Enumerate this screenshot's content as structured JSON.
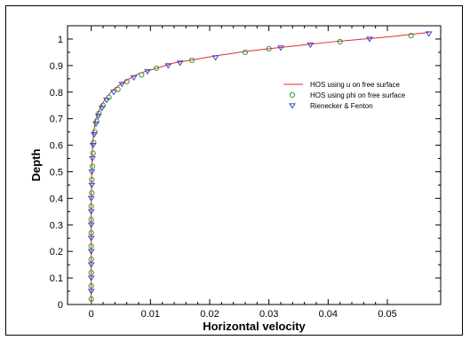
{
  "chart_data": {
    "type": "line",
    "xlabel": "Horizontal velocity",
    "ylabel": "Depth",
    "xlim": [
      -0.004,
      0.059
    ],
    "ylim": [
      0,
      1.05
    ],
    "x_ticks": [
      {
        "value": 0,
        "label": "0"
      },
      {
        "value": 0.01,
        "label": "0.01"
      },
      {
        "value": 0.02,
        "label": "0.02"
      },
      {
        "value": 0.03,
        "label": "0.03"
      },
      {
        "value": 0.04,
        "label": "0.04"
      },
      {
        "value": 0.05,
        "label": "0.05"
      }
    ],
    "y_ticks": [
      {
        "value": 0,
        "label": "0"
      },
      {
        "value": 0.1,
        "label": "0.1"
      },
      {
        "value": 0.2,
        "label": "0.2"
      },
      {
        "value": 0.3,
        "label": "0.3"
      },
      {
        "value": 0.4,
        "label": "0.4"
      },
      {
        "value": 0.5,
        "label": "0.5"
      },
      {
        "value": 0.6,
        "label": "0.6"
      },
      {
        "value": 0.7,
        "label": "0.7"
      },
      {
        "value": 0.8,
        "label": "0.8"
      },
      {
        "value": 0.9,
        "label": "0.9"
      },
      {
        "value": 1,
        "label": "1"
      }
    ],
    "grid": false,
    "legend_position": "top-right",
    "series": [
      {
        "name": "HOS using u on free surface",
        "marker": "line",
        "color": "#e8282d",
        "points": [
          [
            0,
            0
          ],
          [
            0,
            0.2
          ],
          [
            0,
            0.4
          ],
          [
            0.0001,
            0.5
          ],
          [
            0.0002,
            0.58
          ],
          [
            0.0004,
            0.65
          ],
          [
            0.0008,
            0.7
          ],
          [
            0.0015,
            0.74
          ],
          [
            0.0025,
            0.78
          ],
          [
            0.004,
            0.815
          ],
          [
            0.006,
            0.845
          ],
          [
            0.008,
            0.87
          ],
          [
            0.011,
            0.89
          ],
          [
            0.014,
            0.91
          ],
          [
            0.018,
            0.925
          ],
          [
            0.022,
            0.94
          ],
          [
            0.026,
            0.953
          ],
          [
            0.031,
            0.966
          ],
          [
            0.036,
            0.978
          ],
          [
            0.041,
            0.99
          ],
          [
            0.046,
            1.0
          ],
          [
            0.051,
            1.01
          ],
          [
            0.054,
            1.018
          ],
          [
            0.057,
            1.025
          ]
        ]
      },
      {
        "name": "HOS using phi on free surface",
        "marker": "circle",
        "color": "#2ca02c",
        "points": [
          [
            0,
            0.02
          ],
          [
            0,
            0.07
          ],
          [
            0,
            0.12
          ],
          [
            0,
            0.17
          ],
          [
            0,
            0.22
          ],
          [
            0,
            0.27
          ],
          [
            0,
            0.32
          ],
          [
            0,
            0.37
          ],
          [
            0.0001,
            0.42
          ],
          [
            0.0001,
            0.47
          ],
          [
            0.0002,
            0.52
          ],
          [
            0.0003,
            0.57
          ],
          [
            0.0004,
            0.61
          ],
          [
            0.0006,
            0.65
          ],
          [
            0.0009,
            0.69
          ],
          [
            0.0013,
            0.72
          ],
          [
            0.002,
            0.75
          ],
          [
            0.003,
            0.78
          ],
          [
            0.0045,
            0.81
          ],
          [
            0.006,
            0.84
          ],
          [
            0.0085,
            0.865
          ],
          [
            0.011,
            0.89
          ],
          [
            0.017,
            0.92
          ],
          [
            0.026,
            0.95
          ],
          [
            0.03,
            0.963
          ],
          [
            0.042,
            0.99
          ],
          [
            0.054,
            1.013
          ]
        ]
      },
      {
        "name": "Rienecker & Fenton",
        "marker": "triangle-down",
        "color": "#3a46c8",
        "points": [
          [
            0,
            0.05
          ],
          [
            0,
            0.1
          ],
          [
            0,
            0.15
          ],
          [
            0,
            0.2
          ],
          [
            0,
            0.25
          ],
          [
            0,
            0.3
          ],
          [
            0,
            0.35
          ],
          [
            0,
            0.4
          ],
          [
            0.0001,
            0.45
          ],
          [
            0.0001,
            0.5
          ],
          [
            0.0002,
            0.55
          ],
          [
            0.0003,
            0.6
          ],
          [
            0.0005,
            0.64
          ],
          [
            0.0008,
            0.68
          ],
          [
            0.0012,
            0.71
          ],
          [
            0.0018,
            0.74
          ],
          [
            0.0026,
            0.77
          ],
          [
            0.0038,
            0.8
          ],
          [
            0.0052,
            0.83
          ],
          [
            0.0072,
            0.855
          ],
          [
            0.0095,
            0.878
          ],
          [
            0.013,
            0.9
          ],
          [
            0.015,
            0.91
          ],
          [
            0.021,
            0.93
          ],
          [
            0.032,
            0.967
          ],
          [
            0.037,
            0.978
          ],
          [
            0.047,
            1.0
          ],
          [
            0.057,
            1.02
          ]
        ]
      }
    ]
  }
}
